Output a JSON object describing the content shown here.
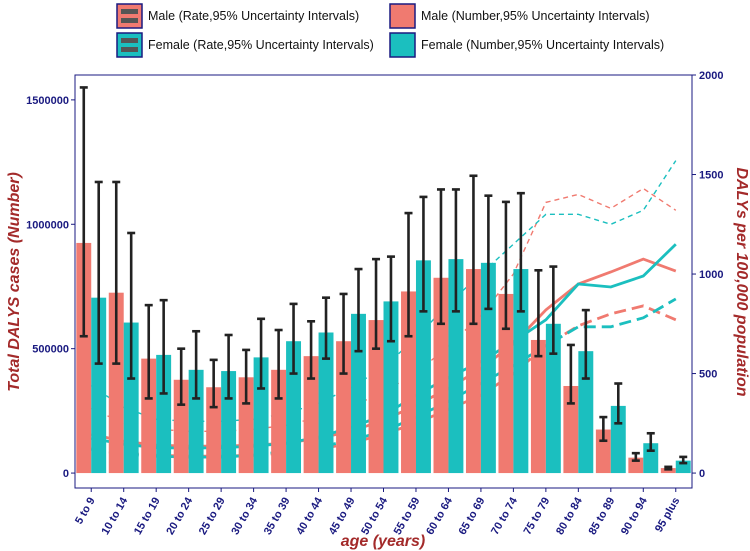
{
  "chart_data": {
    "type": "bar",
    "categories": [
      "5 to 9",
      "10 to 14",
      "15 to 19",
      "20 to 24",
      "25 to 29",
      "30 to 34",
      "35 to 39",
      "40 to 44",
      "45 to 49",
      "50 to 54",
      "55 to 59",
      "60 to 64",
      "65 to 69",
      "70 to 74",
      "75 to 79",
      "80 to 84",
      "85 to 89",
      "90 to 94",
      "95 plus"
    ],
    "xlabel": "age (years)",
    "ylabel_left": "Total DALYS cases (Number)",
    "ylabel_right": "DALYs per 100,000 population",
    "ylim_left": [
      -60000,
      1600000
    ],
    "ylim_right": [
      -75,
      2000
    ],
    "yticks_left": [
      0,
      500000,
      1000000,
      1500000
    ],
    "yticks_right": [
      0,
      500,
      1000,
      1500,
      2000
    ],
    "series": [
      {
        "name": "Male (Number,95% Uncertainty Intervals)",
        "kind": "bar",
        "axis": "left",
        "color": "#f07a70",
        "values": [
          925000,
          725000,
          460000,
          375000,
          345000,
          385000,
          415000,
          470000,
          530000,
          615000,
          730000,
          785000,
          820000,
          720000,
          535000,
          350000,
          175000,
          62000,
          20000
        ],
        "lower": [
          550000,
          440000,
          300000,
          275000,
          265000,
          280000,
          300000,
          380000,
          400000,
          500000,
          550000,
          600000,
          600000,
          580000,
          470000,
          280000,
          130000,
          50000,
          15000
        ],
        "upper": [
          1550000,
          1170000,
          675000,
          500000,
          455000,
          495000,
          575000,
          610000,
          720000,
          860000,
          1045000,
          1140000,
          1195000,
          1090000,
          815000,
          515000,
          225000,
          80000,
          25000
        ]
      },
      {
        "name": "Female (Number,95% Uncertainty Intervals)",
        "kind": "bar",
        "axis": "left",
        "color": "#1bbfbf",
        "values": [
          705000,
          605000,
          475000,
          415000,
          410000,
          465000,
          530000,
          565000,
          640000,
          690000,
          855000,
          860000,
          845000,
          820000,
          600000,
          490000,
          270000,
          120000,
          50000
        ],
        "lower": [
          440000,
          380000,
          320000,
          300000,
          300000,
          340000,
          400000,
          460000,
          490000,
          530000,
          650000,
          650000,
          660000,
          650000,
          480000,
          380000,
          200000,
          90000,
          40000
        ],
        "upper": [
          1170000,
          965000,
          695000,
          570000,
          555000,
          620000,
          680000,
          705000,
          820000,
          870000,
          1110000,
          1140000,
          1115000,
          1125000,
          830000,
          655000,
          360000,
          160000,
          65000
        ]
      },
      {
        "name": "Male (Rate,95% Uncertainty Intervals)",
        "kind": "line",
        "axis": "right",
        "color": "#f07a70",
        "values": [
          195,
          160,
          140,
          135,
          135,
          140,
          150,
          175,
          210,
          265,
          340,
          425,
          525,
          650,
          820,
          950,
          1010,
          1075,
          1015
        ],
        "lower": [
          125,
          100,
          90,
          85,
          85,
          90,
          100,
          120,
          150,
          195,
          250,
          320,
          390,
          500,
          640,
          740,
          800,
          840,
          770
        ],
        "upper": [
          325,
          250,
          220,
          210,
          210,
          220,
          240,
          280,
          330,
          410,
          500,
          640,
          790,
          1000,
          1360,
          1400,
          1330,
          1430,
          1320
        ]
      },
      {
        "name": "Female (Rate,95% Uncertainty Intervals)",
        "kind": "line",
        "axis": "right",
        "color": "#1bbfbf",
        "values": [
          175,
          145,
          128,
          125,
          128,
          135,
          150,
          180,
          230,
          290,
          390,
          480,
          560,
          660,
          770,
          950,
          935,
          990,
          1150
        ],
        "lower": [
          120,
          95,
          85,
          80,
          80,
          90,
          110,
          130,
          165,
          210,
          280,
          360,
          450,
          540,
          640,
          735,
          735,
          780,
          875
        ],
        "upper": [
          440,
          330,
          270,
          260,
          260,
          270,
          300,
          350,
          430,
          530,
          680,
          850,
          1000,
          1150,
          1300,
          1300,
          1250,
          1320,
          1570
        ]
      }
    ],
    "legend": [
      {
        "label": "Male (Rate,95% Uncertainty Intervals)",
        "color": "#f07a70",
        "kind": "rate"
      },
      {
        "label": "Male (Number,95% Uncertainty Intervals)",
        "color": "#f07a70",
        "kind": "number"
      },
      {
        "label": "Female (Rate,95% Uncertainty Intervals)",
        "color": "#1bbfbf",
        "kind": "rate"
      },
      {
        "label": "Female (Number,95% Uncertainty Intervals)",
        "color": "#1bbfbf",
        "kind": "number"
      }
    ],
    "legend_placement": "top",
    "grid": false,
    "colors": {
      "axis": "#1a1a80",
      "title": "#a32a2a",
      "errorbar": "#222222",
      "legend_border": "#1a1a80"
    }
  }
}
